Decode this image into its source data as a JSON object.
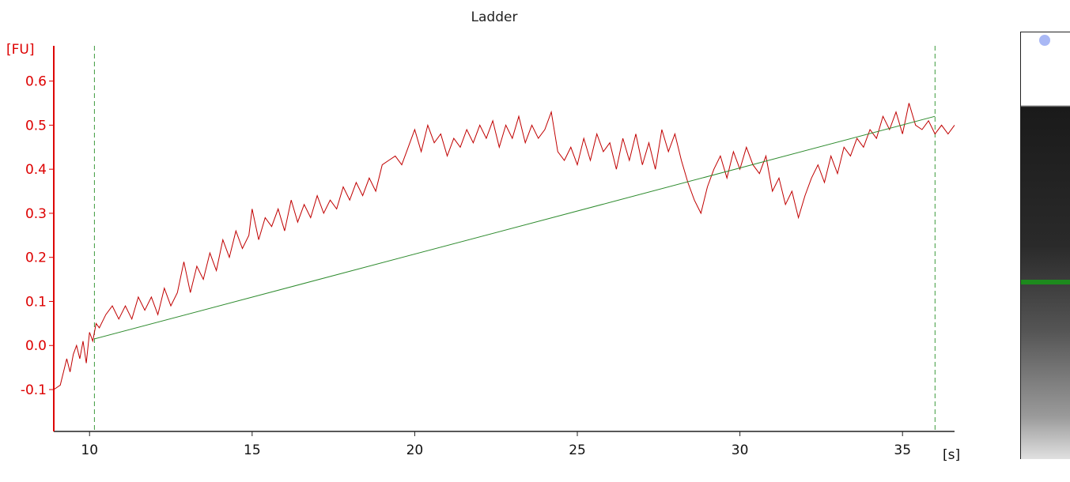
{
  "chart_data": {
    "type": "line",
    "title": "Ladder",
    "xlabel": "[s]",
    "ylabel": "[FU]",
    "xlim": [
      8.9,
      36.6
    ],
    "ylim": [
      -0.195,
      0.68
    ],
    "x_ticks": [
      10,
      15,
      20,
      25,
      30,
      35
    ],
    "x_tick_labels": [
      "10",
      "15",
      "20",
      "25",
      "30",
      "35"
    ],
    "y_ticks": [
      -0.1,
      0.0,
      0.1,
      0.2,
      0.3,
      0.4,
      0.5,
      0.6
    ],
    "y_tick_labels": [
      "-0.1",
      "0.0",
      "0.1",
      "0.2",
      "0.3",
      "0.4",
      "0.5",
      "0.6"
    ],
    "grid": false,
    "axis_color": "#dd0000",
    "series": [
      {
        "color": "#c00000",
        "points": [
          [
            8.9,
            -0.1
          ],
          [
            9.1,
            -0.09
          ],
          [
            9.2,
            -0.06
          ],
          [
            9.3,
            -0.03
          ],
          [
            9.4,
            -0.06
          ],
          [
            9.5,
            -0.02
          ],
          [
            9.6,
            0.0
          ],
          [
            9.7,
            -0.03
          ],
          [
            9.8,
            0.01
          ],
          [
            9.9,
            -0.04
          ],
          [
            10.0,
            0.03
          ],
          [
            10.1,
            0.01
          ],
          [
            10.2,
            0.05
          ],
          [
            10.3,
            0.04
          ],
          [
            10.5,
            0.07
          ],
          [
            10.7,
            0.09
          ],
          [
            10.9,
            0.06
          ],
          [
            11.1,
            0.09
          ],
          [
            11.3,
            0.06
          ],
          [
            11.5,
            0.11
          ],
          [
            11.7,
            0.08
          ],
          [
            11.9,
            0.11
          ],
          [
            12.1,
            0.07
          ],
          [
            12.3,
            0.13
          ],
          [
            12.5,
            0.09
          ],
          [
            12.7,
            0.12
          ],
          [
            12.9,
            0.19
          ],
          [
            13.1,
            0.12
          ],
          [
            13.3,
            0.18
          ],
          [
            13.5,
            0.15
          ],
          [
            13.7,
            0.21
          ],
          [
            13.9,
            0.17
          ],
          [
            14.1,
            0.24
          ],
          [
            14.3,
            0.2
          ],
          [
            14.5,
            0.26
          ],
          [
            14.7,
            0.22
          ],
          [
            14.9,
            0.25
          ],
          [
            15.0,
            0.31
          ],
          [
            15.2,
            0.24
          ],
          [
            15.4,
            0.29
          ],
          [
            15.6,
            0.27
          ],
          [
            15.8,
            0.31
          ],
          [
            16.0,
            0.26
          ],
          [
            16.2,
            0.33
          ],
          [
            16.4,
            0.28
          ],
          [
            16.6,
            0.32
          ],
          [
            16.8,
            0.29
          ],
          [
            17.0,
            0.34
          ],
          [
            17.2,
            0.3
          ],
          [
            17.4,
            0.33
          ],
          [
            17.6,
            0.31
          ],
          [
            17.8,
            0.36
          ],
          [
            18.0,
            0.33
          ],
          [
            18.2,
            0.37
          ],
          [
            18.4,
            0.34
          ],
          [
            18.6,
            0.38
          ],
          [
            18.8,
            0.35
          ],
          [
            19.0,
            0.41
          ],
          [
            19.2,
            0.42
          ],
          [
            19.4,
            0.43
          ],
          [
            19.6,
            0.41
          ],
          [
            19.8,
            0.45
          ],
          [
            20.0,
            0.49
          ],
          [
            20.2,
            0.44
          ],
          [
            20.4,
            0.5
          ],
          [
            20.6,
            0.46
          ],
          [
            20.8,
            0.48
          ],
          [
            21.0,
            0.43
          ],
          [
            21.2,
            0.47
          ],
          [
            21.4,
            0.45
          ],
          [
            21.6,
            0.49
          ],
          [
            21.8,
            0.46
          ],
          [
            22.0,
            0.5
          ],
          [
            22.2,
            0.47
          ],
          [
            22.4,
            0.51
          ],
          [
            22.6,
            0.45
          ],
          [
            22.8,
            0.5
          ],
          [
            23.0,
            0.47
          ],
          [
            23.2,
            0.52
          ],
          [
            23.4,
            0.46
          ],
          [
            23.6,
            0.5
          ],
          [
            23.8,
            0.47
          ],
          [
            24.0,
            0.49
          ],
          [
            24.2,
            0.53
          ],
          [
            24.4,
            0.44
          ],
          [
            24.6,
            0.42
          ],
          [
            24.8,
            0.45
          ],
          [
            25.0,
            0.41
          ],
          [
            25.2,
            0.47
          ],
          [
            25.4,
            0.42
          ],
          [
            25.6,
            0.48
          ],
          [
            25.8,
            0.44
          ],
          [
            26.0,
            0.46
          ],
          [
            26.2,
            0.4
          ],
          [
            26.4,
            0.47
          ],
          [
            26.6,
            0.42
          ],
          [
            26.8,
            0.48
          ],
          [
            27.0,
            0.41
          ],
          [
            27.2,
            0.46
          ],
          [
            27.4,
            0.4
          ],
          [
            27.6,
            0.49
          ],
          [
            27.8,
            0.44
          ],
          [
            28.0,
            0.48
          ],
          [
            28.2,
            0.42
          ],
          [
            28.4,
            0.37
          ],
          [
            28.6,
            0.33
          ],
          [
            28.8,
            0.3
          ],
          [
            29.0,
            0.36
          ],
          [
            29.2,
            0.4
          ],
          [
            29.4,
            0.43
          ],
          [
            29.6,
            0.38
          ],
          [
            29.8,
            0.44
          ],
          [
            30.0,
            0.4
          ],
          [
            30.2,
            0.45
          ],
          [
            30.4,
            0.41
          ],
          [
            30.6,
            0.39
          ],
          [
            30.8,
            0.43
          ],
          [
            31.0,
            0.35
          ],
          [
            31.2,
            0.38
          ],
          [
            31.4,
            0.32
          ],
          [
            31.6,
            0.35
          ],
          [
            31.8,
            0.29
          ],
          [
            32.0,
            0.34
          ],
          [
            32.2,
            0.38
          ],
          [
            32.4,
            0.41
          ],
          [
            32.6,
            0.37
          ],
          [
            32.8,
            0.43
          ],
          [
            33.0,
            0.39
          ],
          [
            33.2,
            0.45
          ],
          [
            33.4,
            0.43
          ],
          [
            33.6,
            0.47
          ],
          [
            33.8,
            0.45
          ],
          [
            34.0,
            0.49
          ],
          [
            34.2,
            0.47
          ],
          [
            34.4,
            0.52
          ],
          [
            34.6,
            0.49
          ],
          [
            34.8,
            0.53
          ],
          [
            35.0,
            0.48
          ],
          [
            35.2,
            0.55
          ],
          [
            35.4,
            0.5
          ],
          [
            35.6,
            0.49
          ],
          [
            35.8,
            0.51
          ],
          [
            36.0,
            0.48
          ],
          [
            36.2,
            0.5
          ],
          [
            36.4,
            0.48
          ],
          [
            36.6,
            0.5
          ]
        ]
      },
      {
        "color": "#2e8b2e",
        "points": [
          [
            10.15,
            0.015
          ],
          [
            36.0,
            0.52
          ]
        ]
      }
    ],
    "vertical_lines": [
      {
        "x": 10.15,
        "color": "#3c9a3c",
        "style": "dashed"
      },
      {
        "x": 36.0,
        "color": "#3c9a3c",
        "style": "dashed"
      }
    ]
  }
}
